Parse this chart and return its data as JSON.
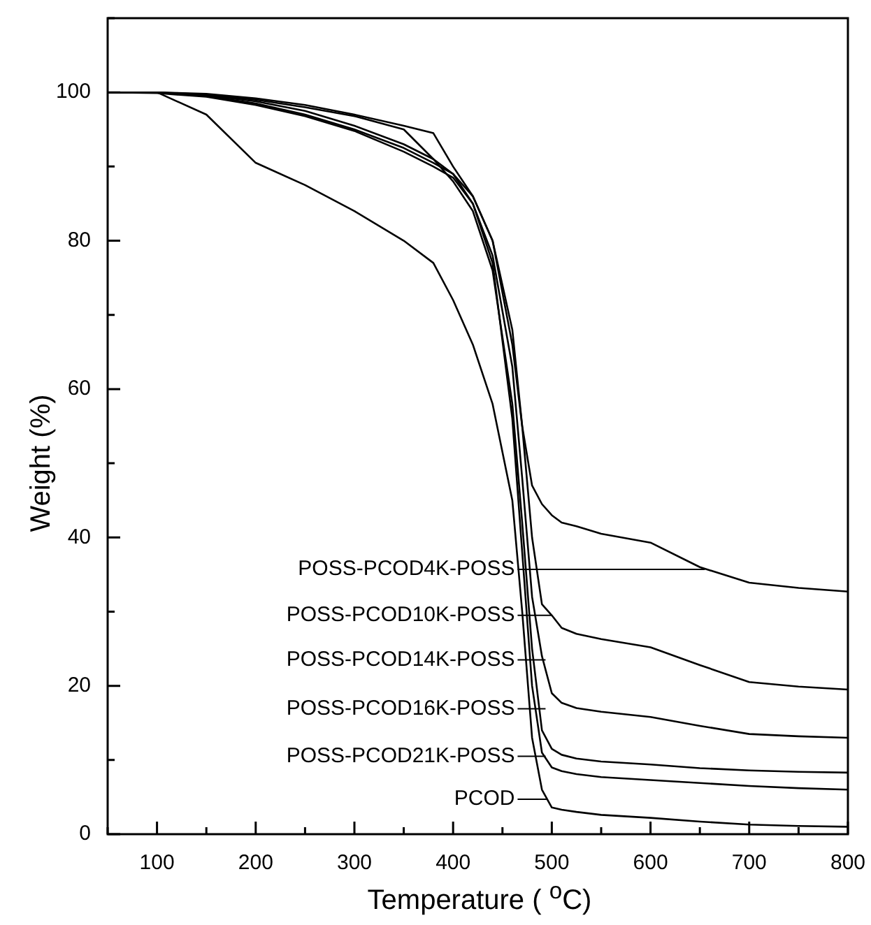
{
  "chart_data": {
    "type": "line",
    "xlabel": "Temperature ( $^{o}$C)",
    "ylabel": "Weight (%)",
    "annotations": [
      {
        "text": "POSS-PCOD4K-POSS",
        "x": 655,
        "y": 35.7
      },
      {
        "text": "POSS-PCOD10K-POSS",
        "x": 500,
        "y": 29.5
      },
      {
        "text": "POSS-PCOD14K-POSS",
        "x": 492,
        "y": 23.5
      },
      {
        "text": "POSS-PCOD16K-POSS",
        "x": 487,
        "y": 16.9
      },
      {
        "text": "POSS-PCOD21K-POSS",
        "x": 492,
        "y": 10.5
      },
      {
        "text": "PCOD",
        "x": 495,
        "y": 4.7
      }
    ],
    "x": [
      50,
      100,
      150,
      200,
      250,
      300,
      350,
      380,
      400,
      420,
      440,
      460,
      470,
      480,
      490,
      500,
      510,
      525,
      550,
      600,
      650,
      700,
      750,
      800
    ],
    "series": [
      {
        "color": "#000000",
        "values": [
          100,
          100,
          99.8,
          99.2,
          98.3,
          97,
          95.5,
          94.5,
          90,
          86,
          80,
          66,
          55,
          47,
          44.5,
          43,
          42,
          41.5,
          40.5,
          39.3,
          36,
          33.9,
          33.2,
          32.7
        ]
      },
      {
        "color": "#000000",
        "values": [
          100,
          100,
          99.5,
          98.5,
          97,
          95,
          92.5,
          90.5,
          89,
          86,
          80,
          68,
          55,
          40,
          31,
          29.5,
          27.8,
          27,
          26.3,
          25.2,
          22.8,
          20.5,
          19.9,
          19.5
        ]
      },
      {
        "color": "#000000",
        "values": [
          100,
          99.9,
          99.4,
          98.3,
          96.8,
          94.8,
          92,
          90,
          88.5,
          85,
          78,
          63,
          48,
          32,
          24,
          19,
          17.7,
          17,
          16.5,
          15.8,
          14.6,
          13.5,
          13.2,
          13
        ]
      },
      {
        "color": "#000000",
        "values": [
          100,
          100,
          99.7,
          99,
          98,
          96.8,
          95,
          91,
          88,
          84,
          76,
          58,
          42,
          25,
          14,
          11.5,
          10.7,
          10.2,
          9.8,
          9.4,
          8.9,
          8.6,
          8.4,
          8.3
        ]
      },
      {
        "color": "#000000",
        "values": [
          100,
          100,
          99.6,
          98.8,
          97.5,
          95.5,
          93,
          91,
          89,
          85,
          77,
          56,
          38,
          20,
          11,
          9,
          8.5,
          8.1,
          7.7,
          7.3,
          6.9,
          6.5,
          6.2,
          6
        ]
      },
      {
        "color": "#000000",
        "values": [
          100,
          100,
          97,
          90.5,
          87.5,
          84,
          80,
          77,
          72,
          66,
          58,
          45,
          30,
          13,
          6,
          3.6,
          3.3,
          3,
          2.6,
          2.2,
          1.7,
          1.3,
          1.1,
          1
        ]
      }
    ],
    "xlim": [
      50,
      800
    ],
    "xticks": [
      {
        "value": 50,
        "label": null
      },
      100,
      {
        "value": 150,
        "label": null
      },
      200,
      {
        "value": 250,
        "label": null
      },
      300,
      {
        "value": 350,
        "label": null
      },
      400,
      {
        "value": 450,
        "label": null
      },
      500,
      {
        "value": 550,
        "label": null
      },
      600,
      {
        "value": 650,
        "label": null
      },
      700,
      {
        "value": 750,
        "label": null
      },
      800
    ],
    "ylim": [
      0,
      110
    ],
    "yticks": [
      0,
      {
        "value": 10,
        "label": null
      },
      20,
      {
        "value": 30,
        "label": null
      },
      40,
      {
        "value": 50,
        "label": null
      },
      60,
      {
        "value": 70,
        "label": null
      },
      80,
      {
        "value": 90,
        "label": null
      },
      100,
      {
        "value": 110,
        "label": null
      }
    ],
    "grid": false,
    "legend": false,
    "marker": "none",
    "line_style": "solid"
  }
}
